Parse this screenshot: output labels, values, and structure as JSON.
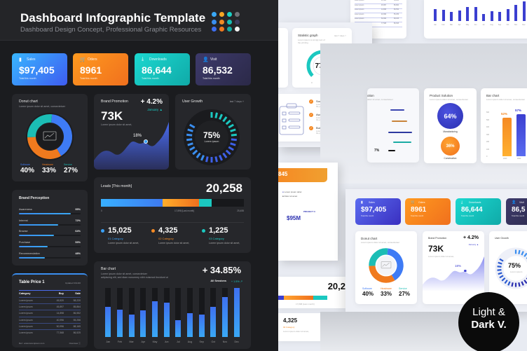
{
  "header": {
    "title": "Dashboard Infographic Template",
    "subtitle": "Dashboard Design Concept, Professional Graphic Resources",
    "palette": [
      "#3aa8f5",
      "#f5a623",
      "#1bd0c4",
      "#6f7076",
      "#3a8ef0",
      "#f08a24",
      "#18bdb5",
      "#3b3a5c",
      "#3e6ef0",
      "#f07a1e",
      "#15aaa3",
      "#f2f2f2"
    ]
  },
  "stats": [
    {
      "icon": "bar-chart-icon",
      "label": "Sales",
      "value": "$97,405",
      "sub": "Total this month",
      "color1": "#38b6ff",
      "color2": "#3e5cf0"
    },
    {
      "icon": "cart-icon",
      "label": "Oders",
      "value": "8961",
      "sub": "Total this month",
      "color1": "#ff9a1f",
      "color2": "#f0701e"
    },
    {
      "icon": "download-icon",
      "label": "Downloads",
      "value": "86,644",
      "sub": "Total this month",
      "color1": "#1bd8d0",
      "color2": "#10aaa8"
    },
    {
      "icon": "user-icon",
      "label": "Visit",
      "value": "86,532",
      "sub": "Total this month",
      "color1": "#3d3a6b",
      "color2": "#2b2948"
    }
  ],
  "donut": {
    "title": "Donut chart",
    "desc": "Lorem ipsum dolor sit amet, consectetuer",
    "segments": [
      {
        "label": "Software",
        "value": 40,
        "color": "#3e7bf5"
      },
      {
        "label": "Headware",
        "value": 33,
        "color": "#f07a1e"
      },
      {
        "label": "Service",
        "value": 27,
        "color": "#1bbdb5"
      }
    ],
    "display": [
      "40%",
      "33%",
      "27%"
    ]
  },
  "promo": {
    "title": "Brand Promotion",
    "change": "+ 4.2%",
    "month": "January ▲",
    "value": "73K",
    "desc": "Lorem ipsum dolor sit amet,",
    "marker": "18%"
  },
  "growth": {
    "title": "User Growth",
    "period": "last 7 days ˅",
    "value": "75%",
    "label": "Lorem ipsum",
    "percent": 75
  },
  "perception": {
    "title": "Brand Perception",
    "items": [
      {
        "label": "Awareness",
        "value": "95%",
        "pct": 95
      },
      {
        "label": "Interest",
        "value": "72%",
        "pct": 72
      },
      {
        "label": "Browse",
        "value": "64%",
        "pct": 64
      },
      {
        "label": "Purchase",
        "value": "53%",
        "pct": 53
      },
      {
        "label": "Recommendation",
        "value": "48%",
        "pct": 48
      }
    ]
  },
  "leads": {
    "title": "Leads [This month]",
    "total": "20,258",
    "axis": [
      "0",
      "17,898 [Last month]",
      "25,455"
    ],
    "cats": [
      {
        "value": "15,025",
        "name": "01 Category",
        "desc": "Lorem ipsum dolor sit amet,",
        "color": "#3aa0f5"
      },
      {
        "value": "4,325",
        "name": "02 Category",
        "desc": "Lorem ipsum dolor sit amet,",
        "color": "#f58a24"
      },
      {
        "value": "1,225",
        "name": "03 Category",
        "desc": "Lorem ipsum dolor sit amet,",
        "color": "#1bc8c0"
      }
    ]
  },
  "table": {
    "title": "Table Price 1",
    "updated": "Updated 3/11/20",
    "headers": [
      "Category",
      "Buy",
      "Sale"
    ],
    "rows": [
      [
        "Lorem ipsum",
        "45,520",
        "58,220"
      ],
      [
        "Lorem ipsum",
        "45,897",
        "85,864"
      ],
      [
        "Lorem ipsum",
        "14,898",
        "86,552"
      ],
      [
        "Lorem ipsum",
        "40,996",
        "55,256"
      ],
      [
        "Lorem ipsum",
        "50,996",
        "88,165"
      ],
      [
        "Lorem ipsum",
        "77,568",
        "86,525"
      ]
    ],
    "ref": "Ref : www.loremipsum.com",
    "overview": "Overview ⓘ"
  },
  "bar": {
    "title": "Bar chart",
    "desc1": "Lorem ipsum dolor sit amet, consectetuer",
    "desc2": "adipiscing elit, sed diam nonummy nibh euismod tincidunt ut",
    "change": "+ 34.85%",
    "sessions": "All Sessions",
    "sessions_change": "+ 1.5% ↗"
  },
  "chart_data": {
    "type": "bar",
    "categories": [
      "Jan",
      "Feb",
      "Mar",
      "Apr",
      "May",
      "Jun",
      "Jul",
      "Aug",
      "Sep",
      "Oct",
      "Nov",
      "Dec"
    ],
    "values": [
      62,
      56,
      46,
      54,
      73,
      70,
      35,
      49,
      46,
      62,
      82,
      100
    ],
    "ylim": [
      0,
      100
    ]
  },
  "light": {
    "statistic": {
      "title": "Statistic graph",
      "desc": "Lorem ipsum is simply text of the printing",
      "period": "last 7 days ˅",
      "value": "77%",
      "min": "0",
      "max": "100",
      "percent": 77
    },
    "checklist": [
      {
        "title": "Social Marketing",
        "desc": "Lorem ipsum is simply text of the printing"
      },
      {
        "title": "Awareness of risks",
        "desc": "Lorem ipsum is simply text of the printing"
      },
      {
        "title": "Business plan",
        "desc": "Lorem ipsum is simply text of the printing"
      }
    ],
    "product": {
      "title": "Product Solution",
      "desc": "Lorem ipsum dolor sit amet, consectetuer",
      "big": "64%",
      "big_label": "Manufacturing",
      "small": "36%",
      "small_label": "Construction"
    },
    "barchart": {
      "title": "Bar chart",
      "desc": "Lorem ipsum dolor sit amet, consectetuer",
      "yticks": [
        "600",
        "500",
        "400",
        "300",
        "200",
        "100",
        "0"
      ],
      "bars": [
        {
          "label": "52%",
          "year": "2023",
          "value": 52,
          "color": "#f58a24"
        },
        {
          "label": "57%",
          "year": "2024",
          "value": 57,
          "color": "#3b3fd0"
        }
      ]
    },
    "partial_line": {
      "title": "otion",
      "desc": "dolor sit amet, consectetuer",
      "value": "7%"
    },
    "project": {
      "amount": "845",
      "legend": [
        "Lorem ipsum dolor",
        "Dolor sit amet"
      ],
      "label": "PROJECT 3",
      "value": "$95M"
    },
    "leads_total": "20,2",
    "leads_axis": "17,898 [Last month]",
    "badge": {
      "line1": "Light &",
      "line2": "Dark V."
    },
    "stats": [
      {
        "label": "Sales",
        "value": "$97,405",
        "sub": "Total this month"
      },
      {
        "label": "Oders",
        "value": "8961",
        "sub": "Total this month"
      },
      {
        "label": "Downloads",
        "value": "86,644",
        "sub": "Total this month"
      },
      {
        "label": "Visit",
        "value": "86,5",
        "sub": "Total this month"
      }
    ]
  }
}
